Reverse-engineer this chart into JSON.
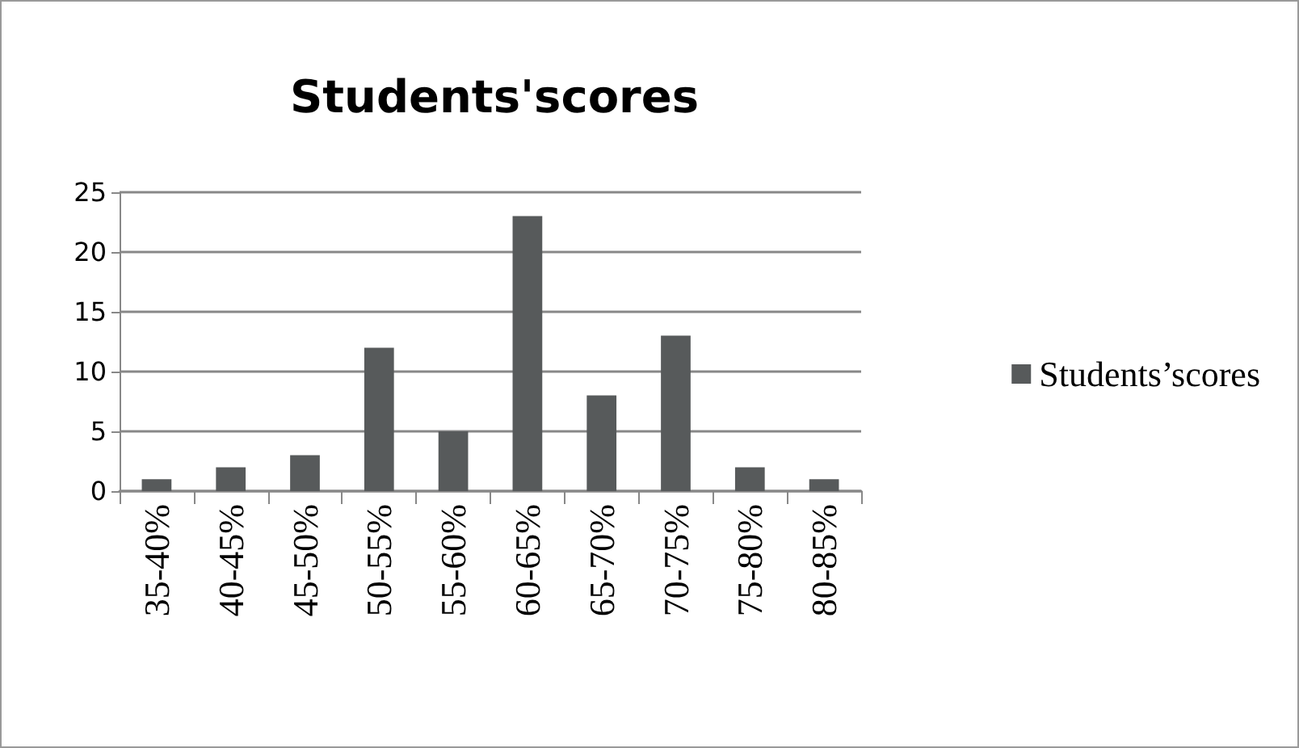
{
  "chart_data": {
    "type": "bar",
    "title": "Students'scores",
    "categories": [
      "35-40%",
      "40-45%",
      "45-50%",
      "50-55%",
      "55-60%",
      "60-65%",
      "65-70%",
      "70-75%",
      "75-80%",
      "80-85%"
    ],
    "series": [
      {
        "name": "Students’scores",
        "color": "#575a5b",
        "values": [
          1,
          2,
          3,
          12,
          5,
          23,
          8,
          13,
          2,
          1
        ]
      }
    ],
    "ylim": [
      0,
      25
    ],
    "yticks": [
      0,
      5,
      10,
      15,
      20,
      25
    ],
    "grid": "y",
    "legend": "right"
  }
}
